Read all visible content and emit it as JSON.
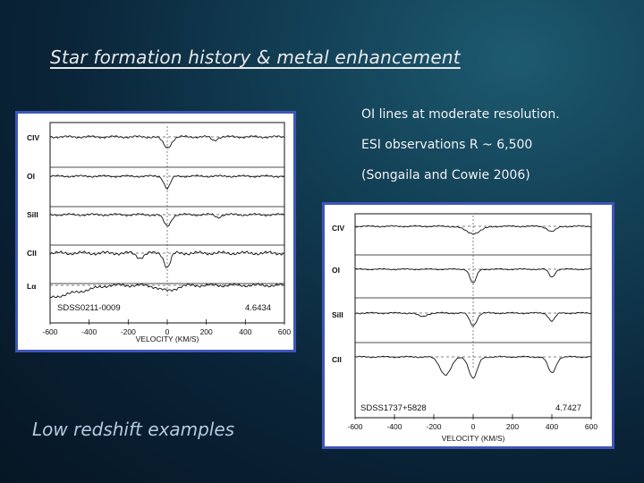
{
  "slide": {
    "title": "Star formation history & metal enhancement",
    "notes": [
      "OI lines at moderate resolution.",
      "ESI observations   R ~ 6,500",
      "(Songaila and Cowie 2006)"
    ],
    "caption": "Low redshift examples"
  },
  "figures": [
    {
      "object": "SDSS0211-0009",
      "redshift": "4.6434",
      "xlabel": "VELOCITY (KM/S)",
      "xticks": [
        "-600",
        "-400",
        "-200",
        "0",
        "200",
        "400",
        "600"
      ],
      "lines": [
        "CIV",
        "OI",
        "SiII",
        "CII",
        "Lα"
      ]
    },
    {
      "object": "SDSS1737+5828",
      "redshift": "4.7427",
      "xlabel": "VELOCITY (KM/S)",
      "xticks": [
        "-600",
        "-400",
        "-200",
        "0",
        "200",
        "400",
        "600"
      ],
      "lines": [
        "CIV",
        "OI",
        "SiII",
        "CII"
      ]
    }
  ]
}
